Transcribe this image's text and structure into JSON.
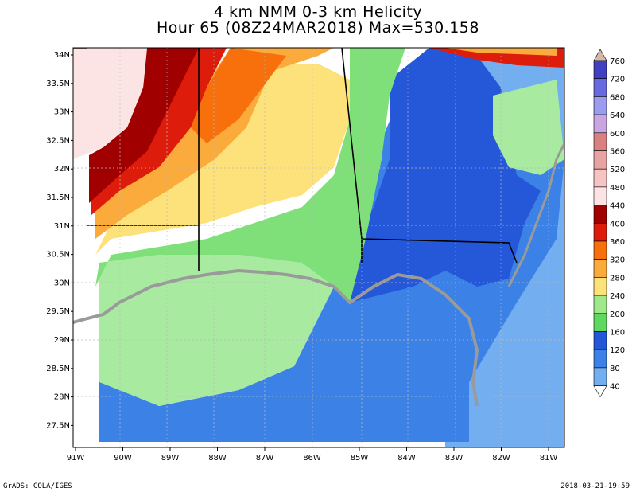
{
  "title_line1": "4 km NMM 0-3 km Helicity",
  "title_line2": "Hour 65 (08Z24MAR2018) Max=530.158",
  "footer_left": "GrADS: COLA/IGES",
  "footer_right": "2018-03-21-19:59",
  "lat_labels": [
    "34N",
    "33.5N",
    "33N",
    "32.5N",
    "32N",
    "31.5N",
    "31N",
    "30.5N",
    "30N",
    "29.5N",
    "29N",
    "28.5N",
    "28N",
    "27.5N"
  ],
  "lon_labels": [
    "91W",
    "90W",
    "89W",
    "88W",
    "87W",
    "86W",
    "85W",
    "84W",
    "83W",
    "82W",
    "81W"
  ],
  "colorbar": {
    "labels": [
      "760",
      "720",
      "680",
      "640",
      "600",
      "560",
      "520",
      "480",
      "440",
      "400",
      "360",
      "320",
      "280",
      "240",
      "200",
      "160",
      "120",
      "80",
      "40"
    ],
    "colors": [
      "#d4b9a9",
      "#4040c0",
      "#6a6ae0",
      "#9b9bf0",
      "#c9a6e0",
      "#d98080",
      "#e8a3a3",
      "#f7c4c4",
      "#fde4e4",
      "#a00000",
      "#dd1c0c",
      "#f7700c",
      "#fbaa3c",
      "#fde17a",
      "#9ee889",
      "#5fd860",
      "#2458d8",
      "#3c82e6",
      "#73aef0"
    ]
  },
  "chart_data": {
    "type": "filled-contour-map",
    "title": "4 km NMM 0-3 km Helicity",
    "subtitle": "Hour 65 (08Z24MAR2018) Max=530.158",
    "x_range": [
      "91W",
      "81W"
    ],
    "y_range": [
      "27.5N",
      "34N"
    ],
    "levels": [
      40,
      80,
      120,
      160,
      200,
      240,
      280,
      320,
      360,
      400,
      440,
      480,
      520,
      560,
      600,
      640,
      680,
      720,
      760
    ],
    "max": 530.158
  }
}
